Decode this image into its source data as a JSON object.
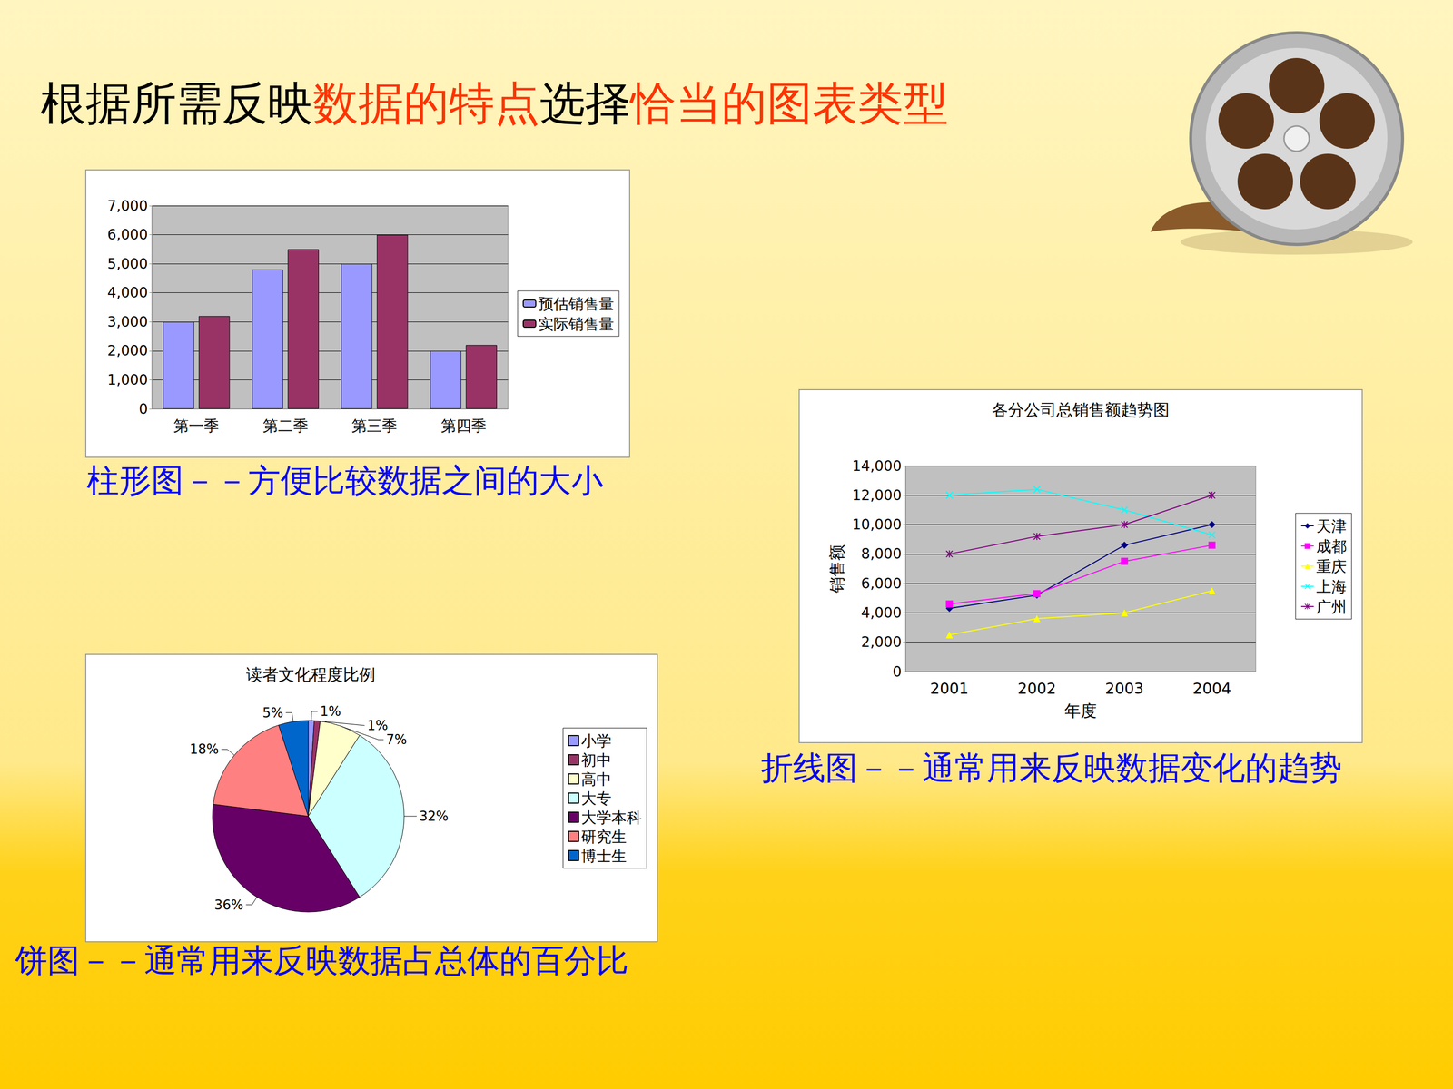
{
  "slide_title": [
    {
      "text": "根据所需反映",
      "color": "#000000"
    },
    {
      "text": "数据的特点",
      "color": "#ff3300"
    },
    {
      "text": "选择",
      "color": "#000000"
    },
    {
      "text": "恰当的图表类型",
      "color": "#ff3300"
    }
  ],
  "chart_data": [
    {
      "type": "bar",
      "caption": "柱形图－－方便比较数据之间的大小",
      "categories": [
        "第一季",
        "第二季",
        "第三季",
        "第四季"
      ],
      "series": [
        {
          "name": "预估销售量",
          "color": "#9999ff",
          "values": [
            3000,
            4800,
            5000,
            2000
          ]
        },
        {
          "name": "实际销售量",
          "color": "#993366",
          "values": [
            3200,
            5500,
            6000,
            2200
          ]
        }
      ],
      "ylim": [
        0,
        7000
      ],
      "yticks": [
        0,
        1000,
        2000,
        3000,
        4000,
        5000,
        6000,
        7000
      ],
      "grid": true,
      "legend": "right"
    },
    {
      "type": "line",
      "caption": "折线图－－通常用来反映数据变化的趋势",
      "title": "各分公司总销售额趋势图",
      "x_label": "年度",
      "y_label": "销售额",
      "categories": [
        "2001",
        "2002",
        "2003",
        "2004"
      ],
      "series": [
        {
          "name": "天津",
          "color": "#000080",
          "marker": "diamond",
          "values": [
            4300,
            5200,
            8600,
            10000
          ]
        },
        {
          "name": "成都",
          "color": "#ff00ff",
          "marker": "square",
          "values": [
            4600,
            5300,
            7500,
            8600
          ]
        },
        {
          "name": "重庆",
          "color": "#ffff00",
          "marker": "triangle",
          "values": [
            2500,
            3600,
            4000,
            5500
          ]
        },
        {
          "name": "上海",
          "color": "#00ffff",
          "marker": "x",
          "values": [
            12000,
            12400,
            11000,
            9300
          ]
        },
        {
          "name": "广州",
          "color": "#800080",
          "marker": "star",
          "values": [
            8000,
            9200,
            10000,
            12000
          ]
        }
      ],
      "ylim": [
        0,
        14000
      ],
      "yticks": [
        0,
        2000,
        4000,
        6000,
        8000,
        10000,
        12000,
        14000
      ],
      "grid": true,
      "legend": "right"
    },
    {
      "type": "pie",
      "caption": "饼图－－通常用来反映数据占总体的百分比",
      "title": "读者文化程度比例",
      "categories": [
        "小学",
        "初中",
        "高中",
        "大专",
        "大学本科",
        "研究生",
        "博士生"
      ],
      "values": [
        1,
        1,
        7,
        32,
        36,
        18,
        5
      ],
      "value_labels": [
        "1%",
        "1%",
        "7%",
        "32%",
        "36%",
        "18%",
        "5%"
      ],
      "colors": [
        "#9999ff",
        "#993366",
        "#ffffcc",
        "#ccffff",
        "#660066",
        "#ff8080",
        "#0066cc"
      ],
      "data_labels": true,
      "legend": "right"
    }
  ]
}
